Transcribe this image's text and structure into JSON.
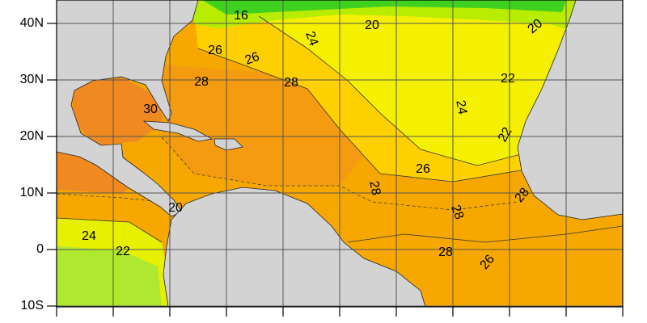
{
  "map": {
    "lat_labels": [
      "40N",
      "30N",
      "20N",
      "10N",
      "0",
      "10S"
    ],
    "contour_labels": [
      16,
      20,
      20,
      24,
      26,
      26,
      28,
      28,
      22,
      24,
      30,
      22,
      26,
      28,
      28,
      28,
      20,
      24,
      22,
      28,
      26
    ]
  }
}
